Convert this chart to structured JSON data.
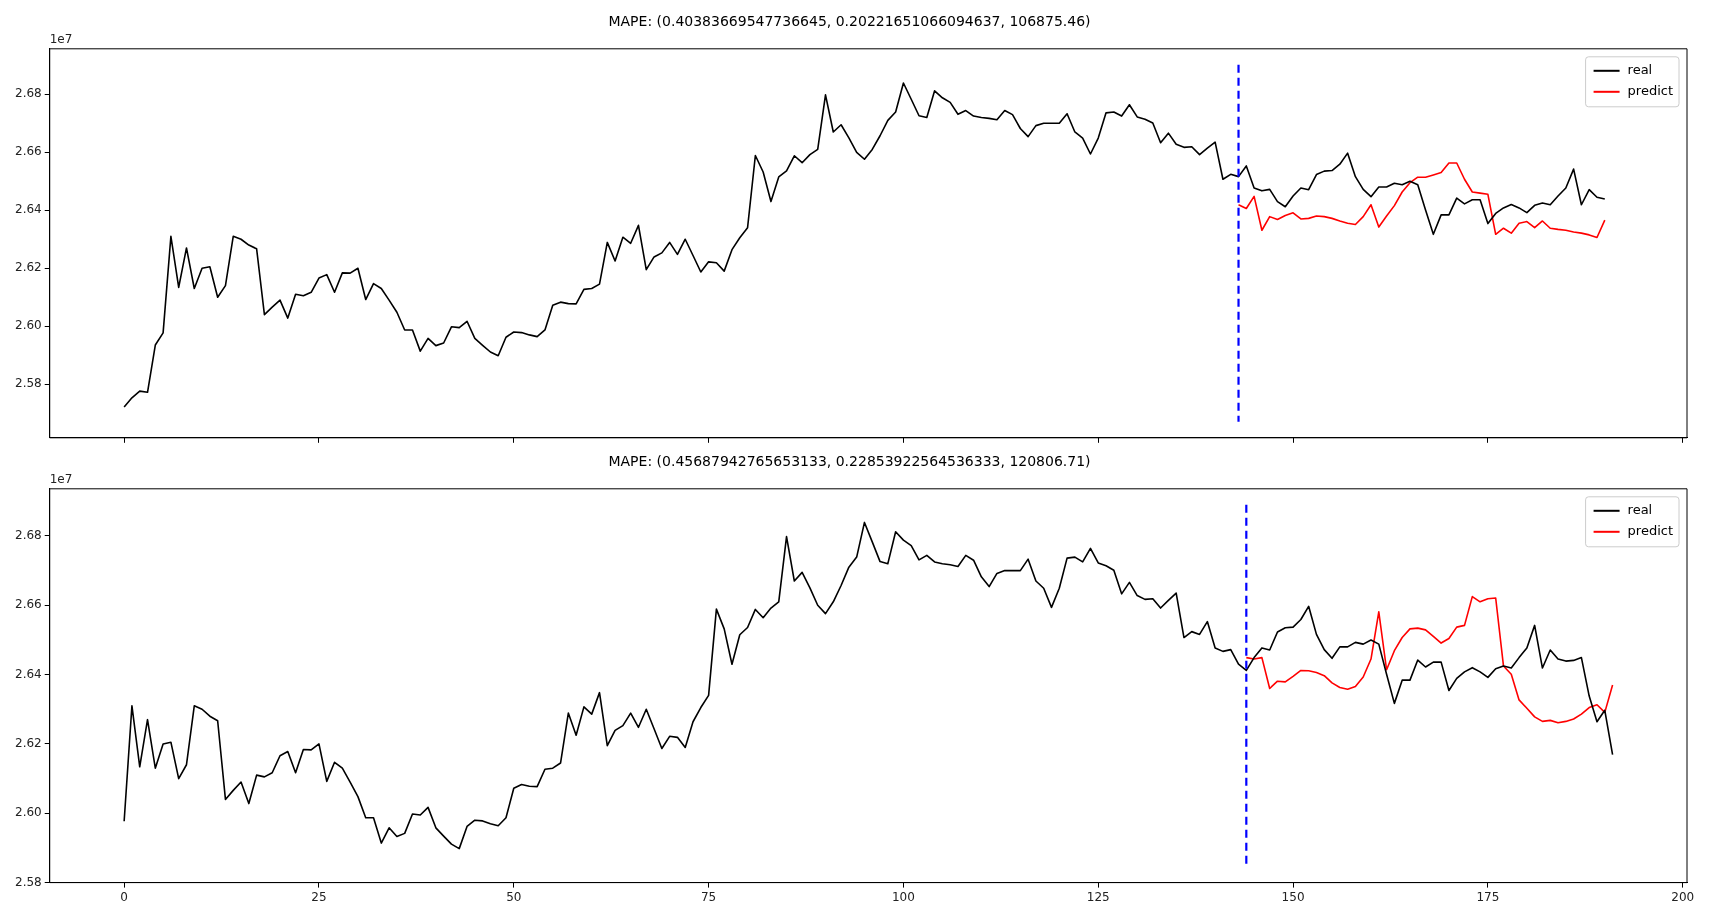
{
  "chart_data": [
    {
      "type": "line",
      "title": "MAPE: (0.40383669547736645, 0.20221651066094637, 106875.46)",
      "xlim": [
        -9.55,
        200.55
      ],
      "xticks": [
        0,
        25,
        50,
        75,
        100,
        125,
        150,
        175,
        200
      ],
      "ylim": [
        2.5615,
        2.6957
      ],
      "yticks": [
        2.58,
        {
          "value": 2.6,
          "label": "2.60"
        },
        2.62,
        2.64,
        2.66,
        2.68
      ],
      "tick_labels": "y",
      "grid": false,
      "legend": "top right",
      "line_style": "solid",
      "marker": "none",
      "annotations": [
        "1e7"
      ],
      "ref_lines": [
        {
          "axis": "x",
          "value": 143,
          "color": "#0000ff",
          "line_style": "dashed"
        }
      ],
      "series": [
        {
          "name": "real",
          "color": "#000000",
          "x": [
            0,
            1,
            2,
            3,
            4,
            5,
            6,
            7,
            8,
            9,
            10,
            11,
            12,
            13,
            14,
            15,
            16,
            17,
            18,
            19,
            20,
            21,
            22,
            23,
            24,
            25,
            26,
            27,
            28,
            29,
            30,
            31,
            32,
            33,
            34,
            35,
            36,
            37,
            38,
            39,
            40,
            41,
            42,
            43,
            44,
            45,
            46,
            47,
            48,
            49,
            50,
            51,
            52,
            53,
            54,
            55,
            56,
            57,
            58,
            59,
            60,
            61,
            62,
            63,
            64,
            65,
            66,
            67,
            68,
            69,
            70,
            71,
            72,
            73,
            74,
            75,
            76,
            77,
            78,
            79,
            80,
            81,
            82,
            83,
            84,
            85,
            86,
            87,
            88,
            89,
            90,
            91,
            92,
            93,
            94,
            95,
            96,
            97,
            98,
            99,
            100,
            101,
            102,
            103,
            104,
            105,
            106,
            107,
            108,
            109,
            110,
            111,
            112,
            113,
            114,
            115,
            116,
            117,
            118,
            119,
            120,
            121,
            122,
            123,
            124,
            125,
            126,
            127,
            128,
            129,
            130,
            131,
            132,
            133,
            134,
            135,
            136,
            137,
            138,
            139,
            140,
            141,
            142,
            143,
            144,
            145,
            146,
            147,
            148,
            149,
            150,
            151,
            152,
            153,
            154,
            155,
            156,
            157,
            158,
            159,
            160,
            161,
            162,
            163,
            164,
            165,
            166,
            167,
            168,
            169,
            170,
            171,
            172,
            173,
            174,
            175,
            176,
            177,
            178,
            179,
            180,
            181,
            182,
            183,
            184,
            185,
            186,
            187,
            188,
            189,
            190
          ],
          "values": [
            2.5721,
            2.5753,
            2.5776,
            2.5772,
            2.5935,
            2.5977,
            2.631,
            2.6134,
            2.627,
            2.613,
            2.62,
            2.6205,
            2.61,
            2.614,
            2.631,
            2.63,
            2.628,
            2.6267,
            2.604,
            2.6066,
            2.609,
            2.6028,
            2.611,
            2.6105,
            2.6117,
            2.6166,
            2.6178,
            2.6117,
            2.6184,
            2.6183,
            2.62,
            2.6092,
            2.6147,
            2.613,
            2.609,
            2.6048,
            2.5987,
            2.5987,
            2.5914,
            2.5958,
            2.5933,
            2.5942,
            2.5998,
            2.5995,
            2.6017,
            2.5958,
            2.5934,
            2.5911,
            2.5898,
            2.5962,
            2.598,
            2.5978,
            2.597,
            2.5964,
            2.5987,
            2.6072,
            2.6083,
            2.6078,
            2.6077,
            2.6127,
            2.613,
            2.6145,
            2.6289,
            2.6225,
            2.6307,
            2.6286,
            2.6348,
            2.6195,
            2.6239,
            2.6253,
            2.6289,
            2.6248,
            2.63,
            2.6244,
            2.6187,
            2.6222,
            2.6219,
            2.619,
            2.6264,
            2.6305,
            2.634,
            2.6589,
            2.6532,
            2.643,
            2.6515,
            2.6536,
            2.6588,
            2.6564,
            2.6592,
            2.661,
            2.6798,
            2.667,
            2.6695,
            2.665,
            2.66,
            2.6576,
            2.661,
            2.6657,
            2.671,
            2.6739,
            2.6839,
            2.6783,
            2.6726,
            2.672,
            2.6812,
            2.6788,
            2.6772,
            2.6731,
            2.6744,
            2.6725,
            2.672,
            2.6717,
            2.6712,
            2.6744,
            2.673,
            2.6682,
            2.6654,
            2.6692,
            2.67,
            2.67,
            2.67,
            2.6733,
            2.667,
            2.6649,
            2.6594,
            2.6649,
            2.6736,
            2.6739,
            2.6725,
            2.6764,
            2.6722,
            2.6714,
            2.6701,
            2.6633,
            2.6666,
            2.6628,
            2.6617,
            2.6619,
            2.6592,
            2.6614,
            2.6635,
            2.6507,
            2.6524,
            2.6516,
            2.6553,
            2.6477,
            2.6467,
            2.6472,
            2.643,
            2.6412,
            2.6449,
            2.6477,
            2.6471,
            2.6523,
            2.6535,
            2.6537,
            2.6559,
            2.6597,
            2.6516,
            2.6472,
            2.6447,
            2.648,
            2.648,
            2.6493,
            2.6488,
            2.65,
            2.6488,
            2.6401,
            2.6317,
            2.6384,
            2.6384,
            2.6442,
            2.6422,
            2.6436,
            2.6436,
            2.6354,
            2.6389,
            2.6408,
            2.642,
            2.6408,
            2.6392,
            2.6417,
            2.6425,
            2.6419,
            2.6449,
            2.6477,
            2.6542,
            2.6419,
            2.6471,
            2.6445,
            2.6439
          ]
        },
        {
          "name": "predict",
          "color": "#ff0000",
          "x": [
            143,
            144,
            145,
            146,
            147,
            148,
            149,
            150,
            151,
            152,
            153,
            154,
            155,
            156,
            157,
            158,
            159,
            160,
            161,
            162,
            163,
            164,
            165,
            166,
            167,
            168,
            169,
            170,
            171,
            172,
            173,
            174,
            175,
            176,
            177,
            178,
            179,
            180,
            181,
            182,
            183,
            184,
            185,
            186,
            187,
            188,
            189,
            190
          ],
          "values": [
            2.6419,
            2.6406,
            2.6448,
            2.6331,
            2.6378,
            2.6368,
            2.6382,
            2.6391,
            2.637,
            2.6372,
            2.638,
            2.6378,
            2.6372,
            2.6363,
            2.6355,
            2.6351,
            2.6378,
            2.6419,
            2.6342,
            2.638,
            2.6416,
            2.6463,
            2.6495,
            2.6514,
            2.6514,
            2.6522,
            2.653,
            2.6563,
            2.6563,
            2.6507,
            2.6463,
            2.6459,
            2.6455,
            2.6317,
            2.6338,
            2.6321,
            2.6355,
            2.6361,
            2.634,
            2.6363,
            2.6338,
            2.6334,
            2.6331,
            2.6325,
            2.6321,
            2.6315,
            2.6306,
            2.6366
          ]
        }
      ]
    },
    {
      "type": "line",
      "title": "MAPE: (0.45687942765653133, 0.22853922564536333, 120806.71)",
      "xlim": [
        -9.55,
        200.55
      ],
      "xticks": [
        0,
        25,
        50,
        75,
        100,
        125,
        150,
        175,
        200
      ],
      "ylim": [
        2.58,
        2.6936
      ],
      "yticks": [
        2.58,
        {
          "value": 2.6,
          "label": "2.60"
        },
        2.62,
        2.64,
        2.66,
        2.68
      ],
      "grid": false,
      "legend": "top right",
      "line_style": "solid",
      "marker": "none",
      "annotations": [
        "1e7"
      ],
      "ref_lines": [
        {
          "axis": "x",
          "value": 144,
          "color": "#0000ff",
          "line_style": "dashed"
        }
      ],
      "series": [
        {
          "name": "real",
          "color": "#000000",
          "x": [
            0,
            1,
            2,
            3,
            4,
            5,
            6,
            7,
            8,
            9,
            10,
            11,
            12,
            13,
            14,
            15,
            16,
            17,
            18,
            19,
            20,
            21,
            22,
            23,
            24,
            25,
            26,
            27,
            28,
            29,
            30,
            31,
            32,
            33,
            34,
            35,
            36,
            37,
            38,
            39,
            40,
            41,
            42,
            43,
            44,
            45,
            46,
            47,
            48,
            49,
            50,
            51,
            52,
            53,
            54,
            55,
            56,
            57,
            58,
            59,
            60,
            61,
            62,
            63,
            64,
            65,
            66,
            67,
            68,
            69,
            70,
            71,
            72,
            73,
            74,
            75,
            76,
            77,
            78,
            79,
            80,
            81,
            82,
            83,
            84,
            85,
            86,
            87,
            88,
            89,
            90,
            91,
            92,
            93,
            94,
            95,
            96,
            97,
            98,
            99,
            100,
            101,
            102,
            103,
            104,
            105,
            106,
            107,
            108,
            109,
            110,
            111,
            112,
            113,
            114,
            115,
            116,
            117,
            118,
            119,
            120,
            121,
            122,
            123,
            124,
            125,
            126,
            127,
            128,
            129,
            130,
            131,
            132,
            133,
            134,
            135,
            136,
            137,
            138,
            139,
            140,
            141,
            142,
            143,
            144,
            145,
            146,
            147,
            148,
            149,
            150,
            151,
            152,
            153,
            154,
            155,
            156,
            157,
            158,
            159,
            160,
            161,
            162,
            163,
            164,
            165,
            166,
            167,
            168,
            169,
            170,
            171,
            172,
            173,
            174,
            175,
            176,
            177,
            178,
            179,
            180,
            181,
            182,
            183,
            184,
            185,
            186,
            187,
            188,
            189,
            190,
            191
          ],
          "values": [
            2.5977,
            2.631,
            2.6134,
            2.627,
            2.613,
            2.62,
            2.6205,
            2.61,
            2.614,
            2.631,
            2.63,
            2.628,
            2.6267,
            2.604,
            2.6066,
            2.609,
            2.6028,
            2.611,
            2.6105,
            2.6117,
            2.6166,
            2.6178,
            2.6117,
            2.6184,
            2.6183,
            2.62,
            2.6092,
            2.6147,
            2.613,
            2.609,
            2.6048,
            2.5987,
            2.5987,
            2.5914,
            2.5958,
            2.5933,
            2.5942,
            2.5998,
            2.5995,
            2.6017,
            2.5958,
            2.5934,
            2.5911,
            2.5898,
            2.5962,
            2.598,
            2.5978,
            2.597,
            2.5964,
            2.5987,
            2.6072,
            2.6083,
            2.6078,
            2.6077,
            2.6127,
            2.613,
            2.6145,
            2.6289,
            2.6225,
            2.6307,
            2.6286,
            2.6348,
            2.6195,
            2.6239,
            2.6253,
            2.6289,
            2.6248,
            2.63,
            2.6244,
            2.6187,
            2.6222,
            2.6219,
            2.619,
            2.6264,
            2.6305,
            2.634,
            2.6589,
            2.6532,
            2.643,
            2.6515,
            2.6536,
            2.6588,
            2.6564,
            2.6592,
            2.661,
            2.6798,
            2.667,
            2.6695,
            2.665,
            2.66,
            2.6576,
            2.661,
            2.6657,
            2.671,
            2.6739,
            2.6839,
            2.6783,
            2.6726,
            2.672,
            2.6812,
            2.6788,
            2.6772,
            2.6731,
            2.6744,
            2.6725,
            2.672,
            2.6717,
            2.6712,
            2.6744,
            2.673,
            2.6682,
            2.6654,
            2.6692,
            2.67,
            2.67,
            2.67,
            2.6733,
            2.667,
            2.6649,
            2.6594,
            2.6649,
            2.6736,
            2.6739,
            2.6725,
            2.6764,
            2.6722,
            2.6714,
            2.6701,
            2.6633,
            2.6666,
            2.6628,
            2.6617,
            2.6619,
            2.6592,
            2.6614,
            2.6635,
            2.6507,
            2.6524,
            2.6516,
            2.6553,
            2.6477,
            2.6467,
            2.6472,
            2.643,
            2.6412,
            2.6449,
            2.6477,
            2.6471,
            2.6523,
            2.6535,
            2.6537,
            2.6559,
            2.6597,
            2.6516,
            2.6472,
            2.6447,
            2.648,
            2.648,
            2.6493,
            2.6488,
            2.65,
            2.6488,
            2.6401,
            2.6317,
            2.6384,
            2.6384,
            2.6442,
            2.6422,
            2.6436,
            2.6436,
            2.6354,
            2.6389,
            2.6408,
            2.642,
            2.6408,
            2.6392,
            2.6417,
            2.6425,
            2.6419,
            2.6449,
            2.6477,
            2.6542,
            2.6419,
            2.6471,
            2.6445,
            2.6439,
            2.6441,
            2.6449,
            2.6338,
            2.6264,
            2.6297,
            2.6169
          ]
        },
        {
          "name": "predict",
          "color": "#ff0000",
          "x": [
            144,
            145,
            146,
            147,
            148,
            149,
            150,
            151,
            152,
            153,
            154,
            155,
            156,
            157,
            158,
            159,
            160,
            161,
            162,
            163,
            164,
            165,
            166,
            167,
            168,
            169,
            170,
            171,
            172,
            173,
            174,
            175,
            176,
            177,
            178,
            179,
            180,
            181,
            182,
            183,
            184,
            185,
            186,
            187,
            188,
            189,
            190,
            191
          ],
          "values": [
            2.6449,
            2.6445,
            2.6449,
            2.636,
            2.6381,
            2.6379,
            2.6395,
            2.6412,
            2.6411,
            2.6406,
            2.6397,
            2.6376,
            2.6363,
            2.6358,
            2.6366,
            2.6393,
            2.6445,
            2.6581,
            2.6414,
            2.6469,
            2.6507,
            2.6532,
            2.6534,
            2.6529,
            2.651,
            2.6491,
            2.6504,
            2.6537,
            2.6542,
            2.6625,
            2.661,
            2.6619,
            2.6621,
            2.6425,
            2.6401,
            2.6327,
            2.6303,
            2.6278,
            2.6265,
            2.6268,
            2.6261,
            2.6265,
            2.6272,
            2.6286,
            2.6305,
            2.6313,
            2.6291,
            2.637
          ]
        }
      ]
    }
  ]
}
